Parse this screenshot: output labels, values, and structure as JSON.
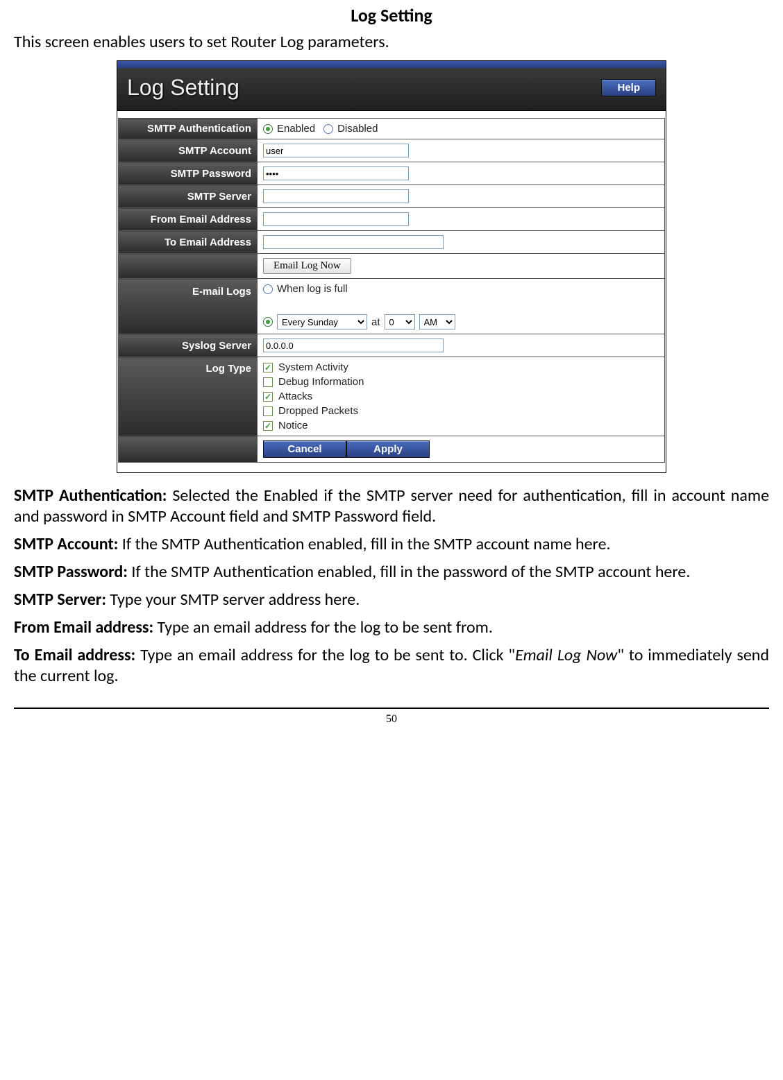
{
  "doc": {
    "title": "Log Setting",
    "intro": "This screen enables users to set Router Log parameters.",
    "page_number": "50"
  },
  "screenshot": {
    "header_title": "Log Setting",
    "help_label": "Help",
    "fields": {
      "smtp_auth": {
        "label": "SMTP Authentication",
        "enabled": "Enabled",
        "disabled": "Disabled"
      },
      "smtp_account": {
        "label": "SMTP Account",
        "value": "user"
      },
      "smtp_password": {
        "label": "SMTP Password",
        "value": "••••"
      },
      "smtp_server": {
        "label": "SMTP Server",
        "value": ""
      },
      "from_email": {
        "label": "From Email Address",
        "value": ""
      },
      "to_email": {
        "label": "To Email Address",
        "value": ""
      },
      "email_now_btn": "Email Log Now",
      "email_logs": {
        "label": "E-mail Logs",
        "opt_full": "When log is full",
        "schedule_day": "Every Sunday",
        "at_label": "at",
        "hour": "0",
        "ampm": "AM"
      },
      "syslog": {
        "label": "Syslog Server",
        "value": "0.0.0.0"
      },
      "log_type": {
        "label": "Log Type",
        "items": [
          {
            "label": "System Activity",
            "checked": true
          },
          {
            "label": "Debug Information",
            "checked": false
          },
          {
            "label": "Attacks",
            "checked": true
          },
          {
            "label": "Dropped Packets",
            "checked": false
          },
          {
            "label": "Notice",
            "checked": true
          }
        ]
      },
      "cancel": "Cancel",
      "apply": "Apply"
    }
  },
  "descriptions": {
    "p1a": "SMTP Authentication:",
    "p1b": " Selected the Enabled if the SMTP server need for authentication, fill in account name and password in SMTP Account field and SMTP Password field.",
    "p2a": "SMTP Account:",
    "p2b": " If the SMTP Authentication enabled, fill in the SMTP account name here.",
    "p3a": "SMTP Password:",
    "p3b": " If the SMTP Authentication enabled, fill in the password of the SMTP account here.",
    "p4a": "SMTP Server:",
    "p4b": " Type your SMTP server address here.",
    "p5a": "From Email address:",
    "p5b": " Type an email address for the log to be sent from.",
    "p6a": "To Email address:",
    "p6b": " Type an email address for the log to be sent to. Click \"",
    "p6c": "Email Log Now",
    "p6d": "\" to immediately send the current log."
  }
}
